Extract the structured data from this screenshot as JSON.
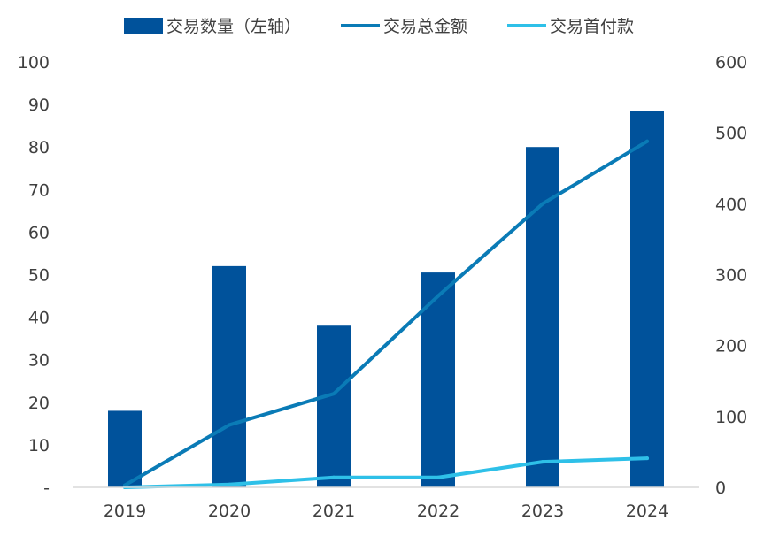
{
  "chart_data": {
    "type": "bar+line",
    "categories": [
      "2019",
      "2020",
      "2021",
      "2022",
      "2023",
      "2024"
    ],
    "series": [
      {
        "name": "交易数量（左轴）",
        "type": "bar",
        "axis": "left",
        "color": "#00529B",
        "values": [
          18,
          52,
          38,
          50.5,
          80,
          88.5
        ]
      },
      {
        "name": "交易总金额",
        "type": "line",
        "axis": "right",
        "color": "#0A7BB6",
        "values": [
          3,
          88,
          132,
          270,
          400,
          488
        ]
      },
      {
        "name": "交易首付款",
        "type": "line",
        "axis": "right",
        "color": "#2EC0E8",
        "values": [
          0,
          4,
          14,
          14,
          36,
          41
        ]
      }
    ],
    "left_axis": {
      "ylim": [
        0,
        100
      ],
      "ticks": [
        0,
        10,
        20,
        30,
        40,
        50,
        60,
        70,
        80,
        90,
        100
      ],
      "tick_labels": [
        "-",
        "10",
        "20",
        "30",
        "40",
        "50",
        "60",
        "70",
        "80",
        "90",
        "100"
      ]
    },
    "right_axis": {
      "ylim": [
        0,
        600
      ],
      "ticks": [
        0,
        100,
        200,
        300,
        400,
        500,
        600
      ],
      "tick_labels": [
        "0",
        "100",
        "200",
        "300",
        "400",
        "500",
        "600"
      ]
    },
    "legend": {
      "position": "top"
    },
    "grid": false
  }
}
